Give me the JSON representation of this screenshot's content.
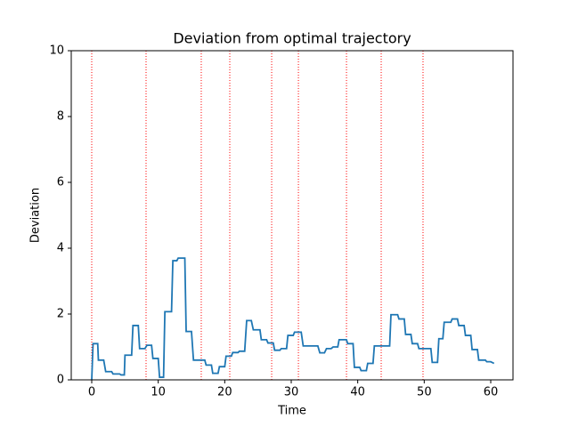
{
  "chart_data": {
    "type": "line",
    "title": "Deviation from optimal trajectory",
    "x_label": "Time",
    "y_label": "Deviation",
    "xlim": [
      -3.08,
      63.35
    ],
    "ylim": [
      0,
      10
    ],
    "xticks": [
      0,
      10,
      20,
      30,
      40,
      50,
      60
    ],
    "yticks": [
      0,
      2,
      4,
      6,
      8,
      10
    ],
    "events": [
      0,
      8.17,
      16.47,
      20.76,
      27.06,
      31.08,
      38.31,
      43.53,
      49.82
    ],
    "event_color": "#ff0000",
    "x": [
      0,
      0.2,
      0.9,
      1.0,
      1.8,
      2.1,
      3.0,
      3.2,
      4.2,
      4.4,
      4.9,
      5.0,
      6.0,
      6.2,
      7.0,
      7.2,
      8.0,
      8.3,
      9.0,
      9.2,
      10.0,
      10.2,
      10.8,
      11.0,
      12.0,
      12.2,
      12.8,
      13.0,
      14.0,
      14.2,
      15.0,
      15.3,
      17.0,
      17.2,
      18.0,
      18.2,
      19.0,
      19.2,
      20.0,
      20.2,
      21.0,
      21.2,
      22.0,
      22.2,
      23.0,
      23.3,
      24.0,
      24.3,
      25.3,
      25.5,
      26.3,
      26.5,
      27.3,
      27.5,
      28.3,
      28.5,
      29.3,
      29.5,
      30.3,
      30.5,
      31.5,
      31.8,
      34.0,
      34.3,
      35.0,
      35.3,
      36.0,
      36.3,
      37.0,
      37.2,
      38.3,
      38.5,
      39.3,
      39.5,
      40.3,
      40.5,
      41.3,
      41.5,
      42.3,
      42.5,
      44.8,
      45.0,
      46.0,
      46.2,
      47.0,
      47.2,
      48.0,
      48.2,
      49.0,
      49.2,
      51.0,
      51.2,
      52.0,
      52.2,
      52.8,
      53.0,
      54.0,
      54.2,
      55.0,
      55.2,
      56.0,
      56.2,
      57.0,
      57.2,
      58.0,
      58.2,
      59.2,
      59.4,
      60.0,
      60.5
    ],
    "series": [
      {
        "color": "#1f77b4",
        "values": [
          0,
          1.1,
          1.1,
          0.6,
          0.6,
          0.25,
          0.25,
          0.18,
          0.18,
          0.15,
          0.15,
          0.75,
          0.75,
          1.65,
          1.65,
          0.95,
          0.95,
          1.05,
          1.05,
          0.65,
          0.65,
          0.08,
          0.08,
          2.07,
          2.07,
          3.62,
          3.62,
          3.7,
          3.7,
          1.47,
          1.47,
          0.6,
          0.6,
          0.45,
          0.45,
          0.2,
          0.2,
          0.4,
          0.4,
          0.72,
          0.72,
          0.83,
          0.83,
          0.87,
          0.87,
          1.8,
          1.8,
          1.52,
          1.52,
          1.22,
          1.22,
          1.12,
          1.12,
          0.9,
          0.9,
          0.95,
          0.95,
          1.35,
          1.35,
          1.45,
          1.45,
          1.03,
          1.03,
          0.82,
          0.82,
          0.95,
          0.95,
          1.0,
          1.0,
          1.22,
          1.22,
          1.1,
          1.1,
          0.38,
          0.38,
          0.28,
          0.28,
          0.5,
          0.5,
          1.03,
          1.03,
          1.98,
          1.98,
          1.85,
          1.85,
          1.38,
          1.38,
          1.1,
          1.1,
          0.95,
          0.95,
          0.53,
          0.53,
          1.25,
          1.25,
          1.75,
          1.75,
          1.85,
          1.85,
          1.65,
          1.65,
          1.35,
          1.35,
          0.92,
          0.92,
          0.6,
          0.6,
          0.55,
          0.55,
          0.5
        ]
      }
    ]
  }
}
